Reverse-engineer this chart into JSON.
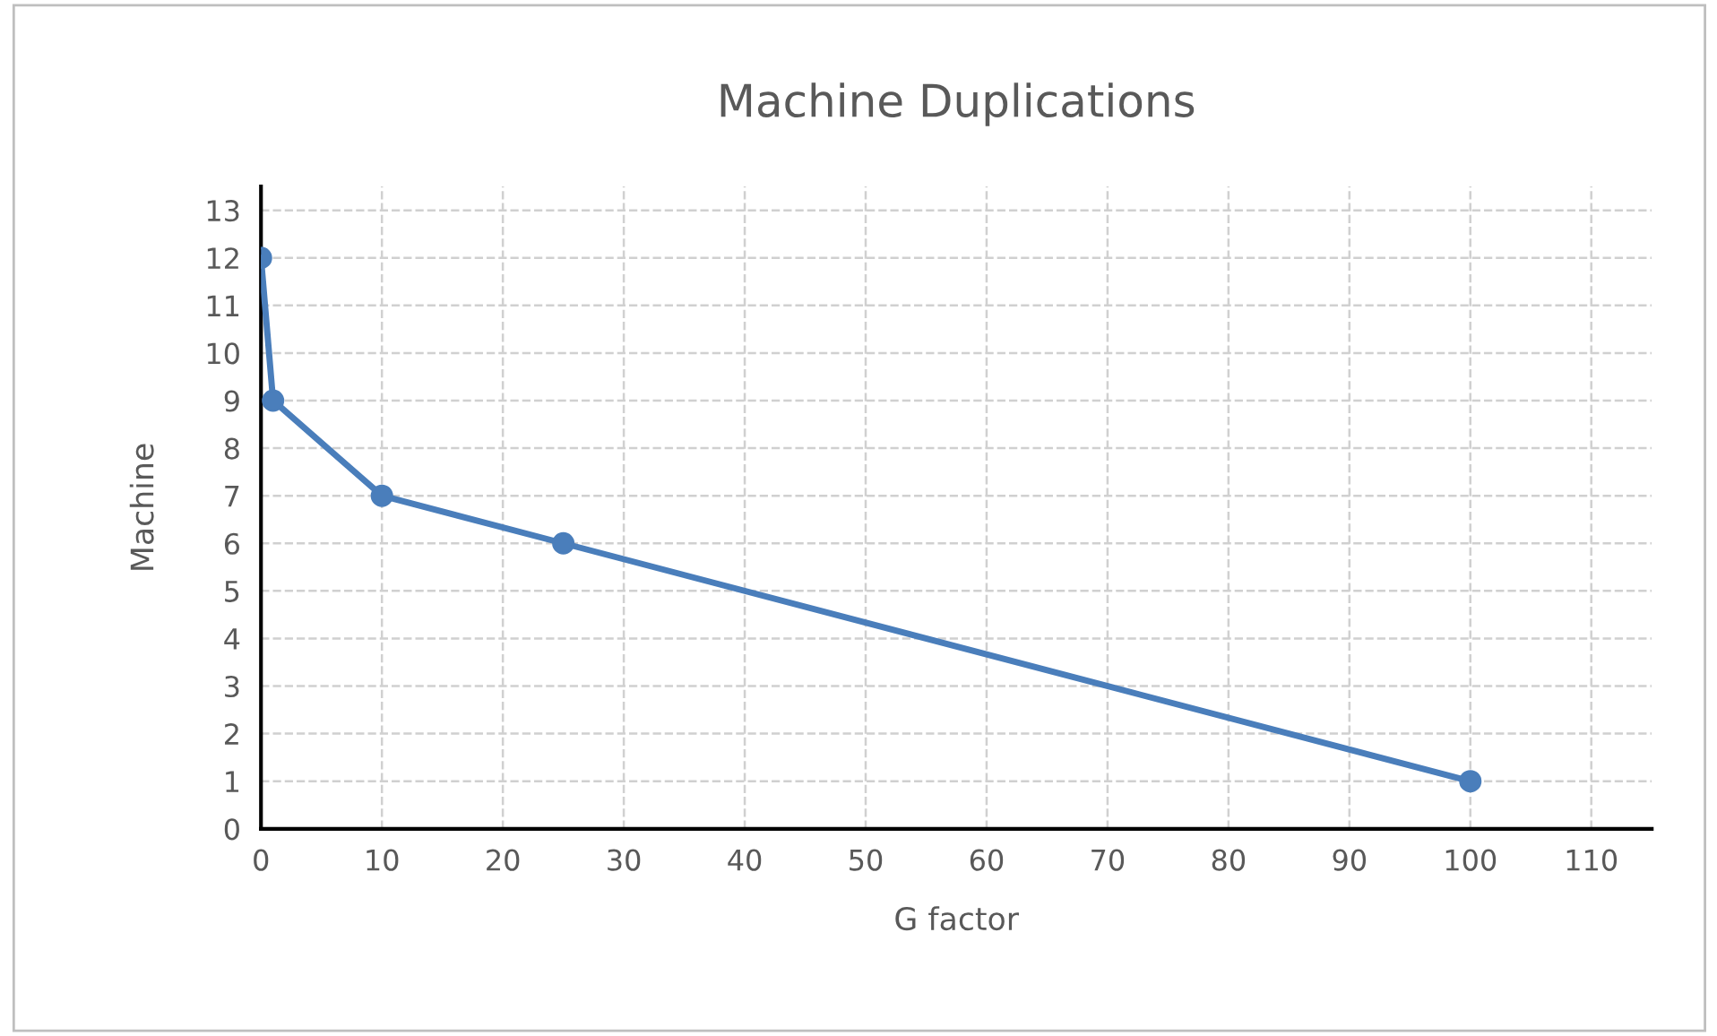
{
  "chart_data": {
    "type": "line",
    "title": "Machine Duplications",
    "xlabel": "G factor",
    "ylabel": "Machine",
    "x": [
      0,
      1,
      10,
      25,
      100
    ],
    "series": [
      {
        "color": "#4a7ebb",
        "values": [
          12,
          9,
          7,
          6,
          1
        ]
      }
    ],
    "xlim": [
      0,
      115
    ],
    "xticks": [
      0,
      10,
      20,
      30,
      40,
      50,
      60,
      70,
      80,
      90,
      100,
      110
    ],
    "ylim": [
      0,
      13.5
    ],
    "yticks": [
      0,
      1,
      2,
      3,
      4,
      5,
      6,
      7,
      8,
      9,
      10,
      11,
      12,
      13
    ],
    "grid": true,
    "marker": "circle",
    "line_style": "solid",
    "legend": false
  }
}
